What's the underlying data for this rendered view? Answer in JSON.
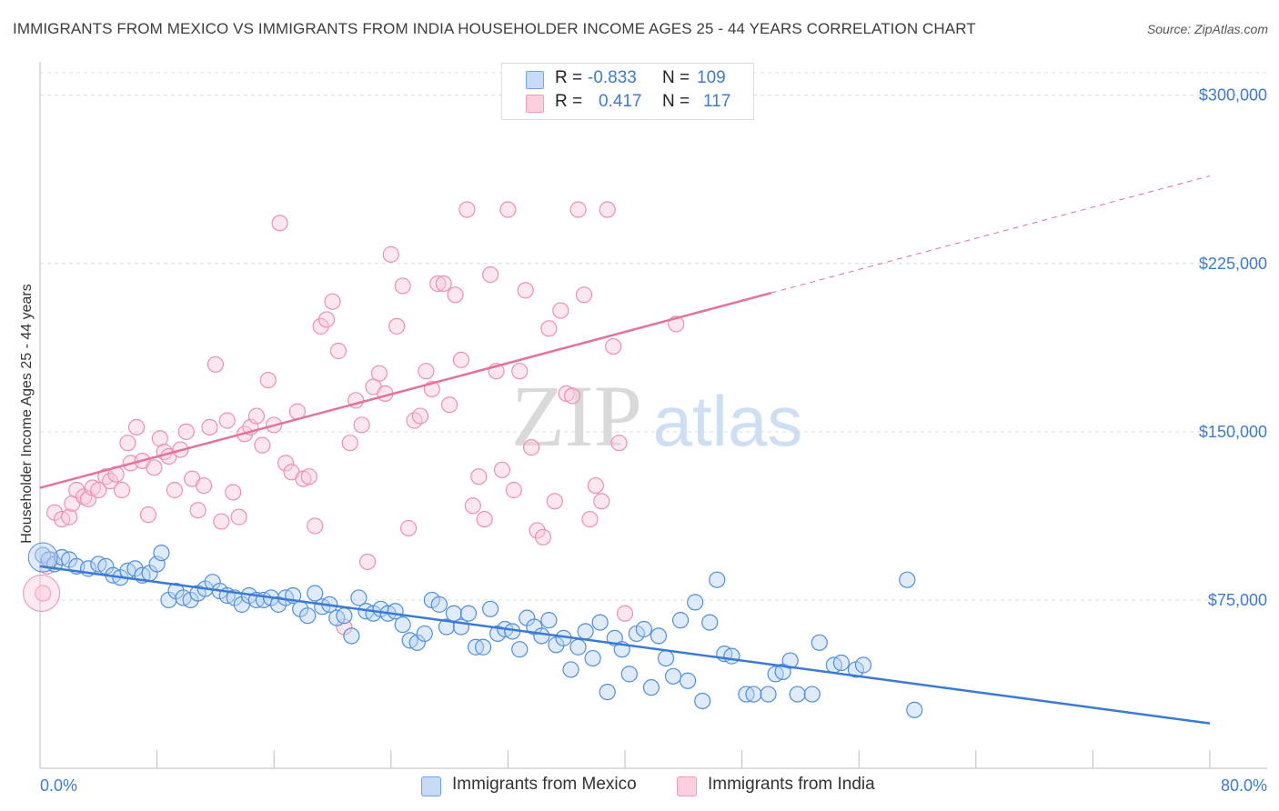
{
  "title": "IMMIGRANTS FROM MEXICO VS IMMIGRANTS FROM INDIA HOUSEHOLDER INCOME AGES 25 - 44 YEARS CORRELATION CHART",
  "source": "Source: ZipAtlas.com",
  "watermark": {
    "zip": "ZIP",
    "atlas": "atlas"
  },
  "legend": {
    "r_label": "R =",
    "n_label": "N =",
    "rows": [
      {
        "r": "-0.833",
        "n": "109",
        "color": "#6fa4e8"
      },
      {
        "r": "0.417",
        "n": "117",
        "color": "#f29bb7"
      }
    ]
  },
  "colors": {
    "mexico": "#3a7ad6",
    "india": "#e4709b",
    "tick": "#3d7bd1"
  },
  "chart_data": {
    "type": "scatter",
    "xlabel": "",
    "ylabel": "Householder Income Ages 25 - 44 years",
    "xlim": [
      0,
      80
    ],
    "ylim": [
      0,
      310000
    ],
    "x_tick_labels": [
      "0.0%",
      "80.0%"
    ],
    "y_ticks": [
      {
        "value": 75000,
        "label": "$75,000"
      },
      {
        "value": 150000,
        "label": "$150,000"
      },
      {
        "value": 225000,
        "label": "$225,000"
      },
      {
        "value": 300000,
        "label": "$300,000"
      }
    ],
    "grid": "horizontal dashed",
    "legend_position": "top-center and bottom",
    "series": [
      {
        "name": "Immigrants from Mexico",
        "color": "#6fa4e8",
        "trend": {
          "x": [
            0,
            80
          ],
          "y": [
            90000,
            20000
          ],
          "dashed_extension": false
        },
        "points": [
          [
            0.2,
            95000
          ],
          [
            0.6,
            93000
          ],
          [
            1.0,
            91000
          ],
          [
            1.5,
            94000
          ],
          [
            2.0,
            93000
          ],
          [
            2.5,
            90000
          ],
          [
            3.3,
            89000
          ],
          [
            4.0,
            91000
          ],
          [
            4.5,
            90000
          ],
          [
            5.0,
            86000
          ],
          [
            5.5,
            85000
          ],
          [
            6.0,
            88000
          ],
          [
            6.5,
            89000
          ],
          [
            7.0,
            86000
          ],
          [
            7.5,
            87000
          ],
          [
            8.0,
            91000
          ],
          [
            8.3,
            96000
          ],
          [
            8.8,
            75000
          ],
          [
            9.3,
            79000
          ],
          [
            9.8,
            76000
          ],
          [
            10.3,
            75000
          ],
          [
            10.8,
            78000
          ],
          [
            11.3,
            80000
          ],
          [
            11.8,
            83000
          ],
          [
            12.3,
            79000
          ],
          [
            12.8,
            77000
          ],
          [
            13.3,
            76000
          ],
          [
            13.8,
            73000
          ],
          [
            14.3,
            77000
          ],
          [
            14.8,
            75000
          ],
          [
            15.3,
            75000
          ],
          [
            15.8,
            76000
          ],
          [
            16.3,
            73000
          ],
          [
            16.8,
            76000
          ],
          [
            17.3,
            77000
          ],
          [
            17.8,
            71000
          ],
          [
            18.3,
            68000
          ],
          [
            18.8,
            78000
          ],
          [
            19.3,
            72000
          ],
          [
            19.8,
            73000
          ],
          [
            20.3,
            67000
          ],
          [
            20.8,
            68000
          ],
          [
            21.3,
            59000
          ],
          [
            21.8,
            76000
          ],
          [
            22.3,
            70000
          ],
          [
            22.8,
            69000
          ],
          [
            23.3,
            71000
          ],
          [
            23.8,
            69000
          ],
          [
            24.3,
            70000
          ],
          [
            24.8,
            64000
          ],
          [
            25.3,
            57000
          ],
          [
            25.8,
            56000
          ],
          [
            26.3,
            60000
          ],
          [
            26.8,
            75000
          ],
          [
            27.3,
            73000
          ],
          [
            27.8,
            63000
          ],
          [
            28.3,
            69000
          ],
          [
            28.8,
            63000
          ],
          [
            29.3,
            69000
          ],
          [
            29.8,
            54000
          ],
          [
            30.3,
            54000
          ],
          [
            30.8,
            71000
          ],
          [
            31.3,
            60000
          ],
          [
            31.8,
            62000
          ],
          [
            32.3,
            61000
          ],
          [
            32.8,
            53000
          ],
          [
            33.3,
            67000
          ],
          [
            33.8,
            63000
          ],
          [
            34.3,
            59000
          ],
          [
            34.8,
            66000
          ],
          [
            35.3,
            55000
          ],
          [
            35.8,
            58000
          ],
          [
            36.3,
            44000
          ],
          [
            36.8,
            54000
          ],
          [
            37.3,
            61000
          ],
          [
            37.8,
            49000
          ],
          [
            38.3,
            65000
          ],
          [
            38.8,
            34000
          ],
          [
            39.3,
            58000
          ],
          [
            39.8,
            53000
          ],
          [
            40.3,
            42000
          ],
          [
            40.8,
            60000
          ],
          [
            41.3,
            62000
          ],
          [
            41.8,
            36000
          ],
          [
            42.3,
            59000
          ],
          [
            42.8,
            49000
          ],
          [
            43.3,
            41000
          ],
          [
            43.8,
            66000
          ],
          [
            44.3,
            39000
          ],
          [
            44.8,
            74000
          ],
          [
            45.3,
            30000
          ],
          [
            45.8,
            65000
          ],
          [
            46.3,
            84000
          ],
          [
            46.8,
            51000
          ],
          [
            47.3,
            50000
          ],
          [
            48.3,
            33000
          ],
          [
            48.8,
            33000
          ],
          [
            49.8,
            33000
          ],
          [
            50.3,
            42000
          ],
          [
            50.8,
            43000
          ],
          [
            51.3,
            48000
          ],
          [
            51.8,
            33000
          ],
          [
            52.8,
            33000
          ],
          [
            53.3,
            56000
          ],
          [
            54.3,
            46000
          ],
          [
            54.8,
            47000
          ],
          [
            55.8,
            44000
          ],
          [
            56.3,
            46000
          ],
          [
            59.3,
            84000
          ],
          [
            59.8,
            26000
          ]
        ]
      },
      {
        "name": "Immigrants from India",
        "color": "#f29bb7",
        "trend": {
          "x": [
            0,
            80
          ],
          "y": [
            125000,
            264000
          ],
          "solid_until_x": 50
        },
        "points": [
          [
            0.2,
            78000
          ],
          [
            0.5,
            90000
          ],
          [
            0.8,
            93000
          ],
          [
            1.0,
            114000
          ],
          [
            1.5,
            111000
          ],
          [
            2.0,
            112000
          ],
          [
            2.2,
            118000
          ],
          [
            2.5,
            124000
          ],
          [
            3.0,
            121000
          ],
          [
            3.3,
            120000
          ],
          [
            3.6,
            125000
          ],
          [
            4.0,
            124000
          ],
          [
            4.5,
            130000
          ],
          [
            4.8,
            128000
          ],
          [
            5.2,
            131000
          ],
          [
            5.6,
            124000
          ],
          [
            6.0,
            145000
          ],
          [
            6.2,
            136000
          ],
          [
            6.6,
            152000
          ],
          [
            7.0,
            137000
          ],
          [
            7.4,
            113000
          ],
          [
            7.8,
            134000
          ],
          [
            8.2,
            147000
          ],
          [
            8.5,
            141000
          ],
          [
            8.8,
            139000
          ],
          [
            9.2,
            124000
          ],
          [
            9.6,
            142000
          ],
          [
            10.0,
            150000
          ],
          [
            10.4,
            129000
          ],
          [
            10.8,
            115000
          ],
          [
            11.2,
            126000
          ],
          [
            11.6,
            152000
          ],
          [
            12.0,
            180000
          ],
          [
            12.4,
            110000
          ],
          [
            12.8,
            155000
          ],
          [
            13.2,
            123000
          ],
          [
            13.6,
            112000
          ],
          [
            14.0,
            149000
          ],
          [
            14.4,
            152000
          ],
          [
            14.8,
            157000
          ],
          [
            15.2,
            144000
          ],
          [
            15.6,
            173000
          ],
          [
            16.0,
            153000
          ],
          [
            16.4,
            243000
          ],
          [
            16.8,
            136000
          ],
          [
            17.2,
            132000
          ],
          [
            17.6,
            159000
          ],
          [
            18.0,
            129000
          ],
          [
            18.4,
            130000
          ],
          [
            18.8,
            108000
          ],
          [
            19.2,
            197000
          ],
          [
            19.6,
            200000
          ],
          [
            20.0,
            208000
          ],
          [
            20.4,
            186000
          ],
          [
            20.8,
            63000
          ],
          [
            21.2,
            145000
          ],
          [
            21.6,
            164000
          ],
          [
            22.0,
            153000
          ],
          [
            22.4,
            92000
          ],
          [
            22.8,
            170000
          ],
          [
            23.2,
            176000
          ],
          [
            23.6,
            167000
          ],
          [
            24.0,
            229000
          ],
          [
            24.4,
            197000
          ],
          [
            24.8,
            215000
          ],
          [
            25.2,
            107000
          ],
          [
            25.6,
            155000
          ],
          [
            26.0,
            157000
          ],
          [
            26.4,
            177000
          ],
          [
            26.8,
            169000
          ],
          [
            27.2,
            216000
          ],
          [
            27.6,
            216000
          ],
          [
            28.0,
            162000
          ],
          [
            28.4,
            211000
          ],
          [
            28.8,
            182000
          ],
          [
            29.2,
            249000
          ],
          [
            29.6,
            117000
          ],
          [
            30.0,
            130000
          ],
          [
            30.4,
            111000
          ],
          [
            30.8,
            220000
          ],
          [
            31.2,
            177000
          ],
          [
            31.6,
            133000
          ],
          [
            32.0,
            249000
          ],
          [
            32.4,
            124000
          ],
          [
            32.8,
            177000
          ],
          [
            33.2,
            213000
          ],
          [
            33.6,
            143000
          ],
          [
            34.0,
            106000
          ],
          [
            34.4,
            103000
          ],
          [
            34.8,
            196000
          ],
          [
            35.2,
            119000
          ],
          [
            35.6,
            204000
          ],
          [
            36.0,
            167000
          ],
          [
            36.4,
            166000
          ],
          [
            36.8,
            249000
          ],
          [
            37.2,
            211000
          ],
          [
            37.6,
            111000
          ],
          [
            38.0,
            126000
          ],
          [
            38.4,
            119000
          ],
          [
            38.8,
            249000
          ],
          [
            39.2,
            188000
          ],
          [
            39.6,
            145000
          ],
          [
            40.0,
            69000
          ],
          [
            43.5,
            198000
          ]
        ]
      }
    ]
  },
  "axis": {
    "ylabel": "Householder Income Ages 25 - 44 years",
    "x_left": "0.0%",
    "x_right": "80.0%"
  },
  "bottom_legend": [
    {
      "label": "Immigrants from Mexico"
    },
    {
      "label": "Immigrants from India"
    }
  ]
}
